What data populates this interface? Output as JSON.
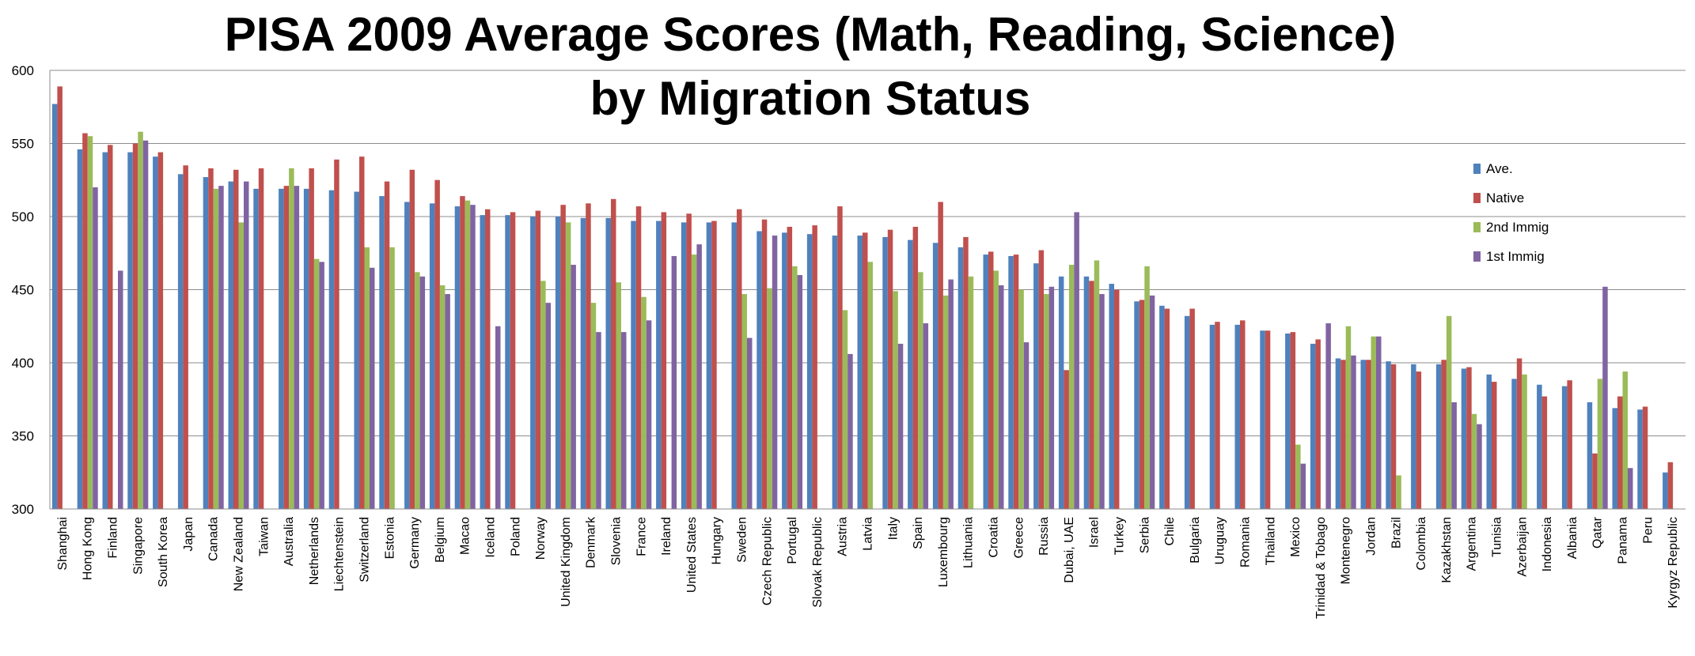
{
  "chart_data": {
    "type": "bar",
    "title": "PISA 2009 Average Scores (Math, Reading, Science)",
    "subtitle": "by Migration Status",
    "xlabel": "",
    "ylabel": "",
    "ylim": [
      300,
      600
    ],
    "yticks": [
      "300",
      "350",
      "400",
      "450",
      "500",
      "550",
      "600"
    ],
    "grid": true,
    "legend_position": "right",
    "categories": [
      "Shanghai",
      "Hong Kong",
      "Finland",
      "Singapore",
      "South Korea",
      "Japan",
      "Canada",
      "New Zealand",
      "Taiwan",
      "Australia",
      "Netherlands",
      "Liechtenstein",
      "Switzerland",
      "Estonia",
      "Germany",
      "Belgium",
      "Macao",
      "Iceland",
      "Poland",
      "Norway",
      "United Kingdom",
      "Denmark",
      "Slovenia",
      "France",
      "Ireland",
      "United States",
      "Hungary",
      "Sweden",
      "Czech Republic",
      "Portugal",
      "Slovak Republic",
      "Austria",
      "Latvia",
      "Italy",
      "Spain",
      "Luxembourg",
      "Lithuania",
      "Croatia",
      "Greece",
      "Russia",
      "Dubai, UAE",
      "Israel",
      "Turkey",
      "Serbia",
      "Chile",
      "Bulgaria",
      "Uruguay",
      "Romania",
      "Thailand",
      "Mexico",
      "Trinidad & Tobago",
      "Montenegro",
      "Jordan",
      "Brazil",
      "Colombia",
      "Kazakhstan",
      "Argentina",
      "Tunisia",
      "Azerbaijan",
      "Indonesia",
      "Albania",
      "Qatar",
      "Panama",
      "Peru",
      "Kyrgyz Republic"
    ],
    "series": [
      {
        "name": "Ave.",
        "color": "#4F81BD",
        "values": [
          577,
          546,
          544,
          544,
          541,
          529,
          527,
          524,
          519,
          519,
          519,
          518,
          517,
          514,
          510,
          509,
          507,
          501,
          501,
          500,
          500,
          499,
          499,
          497,
          497,
          496,
          496,
          496,
          490,
          489,
          488,
          487,
          487,
          486,
          484,
          482,
          479,
          474,
          473,
          468,
          459,
          459,
          454,
          442,
          439,
          432,
          426,
          426,
          422,
          420,
          413,
          403,
          402,
          401,
          399,
          399,
          396,
          392,
          389,
          385,
          384,
          373,
          369,
          368,
          325
        ]
      },
      {
        "name": "Native",
        "color": "#C0504D",
        "values": [
          589,
          557,
          549,
          550,
          544,
          535,
          533,
          532,
          533,
          521,
          533,
          539,
          541,
          524,
          532,
          525,
          514,
          505,
          503,
          504,
          508,
          509,
          512,
          507,
          503,
          502,
          497,
          505,
          498,
          493,
          494,
          507,
          489,
          491,
          493,
          510,
          486,
          476,
          474,
          477,
          395,
          456,
          450,
          443,
          437,
          437,
          428,
          429,
          422,
          421,
          416,
          402,
          402,
          399,
          394,
          402,
          397,
          387,
          403,
          377,
          388,
          338,
          377,
          370,
          332
        ]
      },
      {
        "name": "2nd Immig",
        "color": "#9BBB59",
        "values": [
          null,
          555,
          null,
          558,
          null,
          null,
          519,
          496,
          null,
          533,
          471,
          null,
          479,
          479,
          462,
          453,
          511,
          null,
          null,
          456,
          496,
          441,
          455,
          445,
          null,
          474,
          null,
          447,
          451,
          466,
          null,
          436,
          469,
          449,
          462,
          446,
          459,
          463,
          450,
          447,
          467,
          470,
          null,
          466,
          null,
          null,
          null,
          null,
          null,
          344,
          null,
          425,
          418,
          323,
          null,
          432,
          365,
          null,
          392,
          null,
          null,
          389,
          394,
          null,
          null
        ]
      },
      {
        "name": "1st Immig",
        "color": "#8064A2",
        "values": [
          null,
          520,
          463,
          552,
          null,
          null,
          521,
          524,
          null,
          521,
          469,
          null,
          465,
          null,
          459,
          447,
          508,
          425,
          null,
          441,
          467,
          421,
          421,
          429,
          473,
          481,
          null,
          417,
          487,
          460,
          null,
          406,
          null,
          413,
          427,
          457,
          null,
          453,
          414,
          452,
          503,
          447,
          null,
          446,
          null,
          null,
          null,
          null,
          null,
          331,
          427,
          405,
          418,
          null,
          null,
          373,
          358,
          null,
          null,
          null,
          null,
          452,
          328,
          null,
          null
        ]
      }
    ]
  }
}
